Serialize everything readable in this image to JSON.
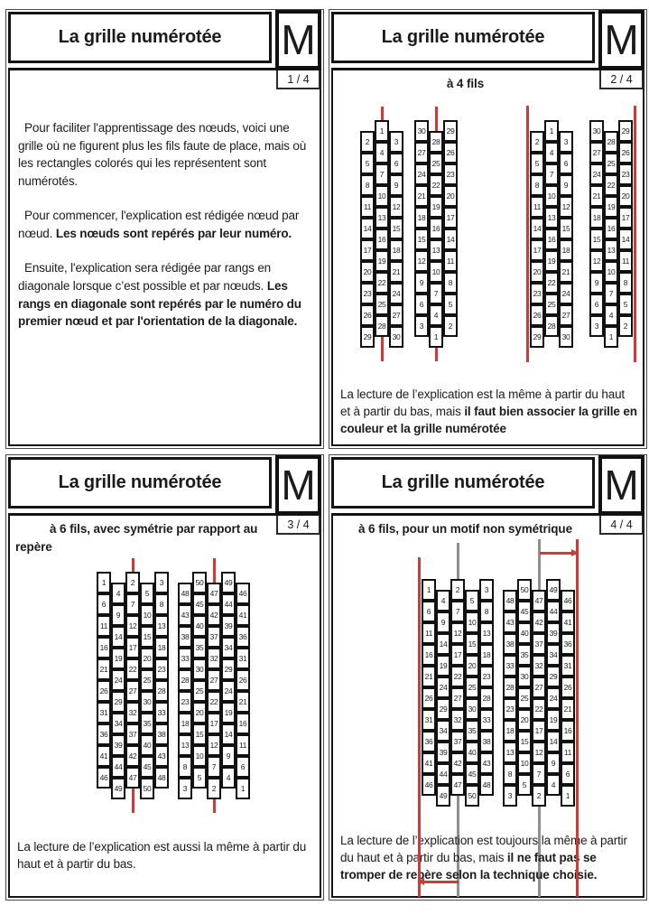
{
  "colors": {
    "red": "#cc3a3a",
    "gray": "#8f8f8f",
    "border": "#141414"
  },
  "slides": [
    {
      "title": "La grille numérotée",
      "logo": "M",
      "page": "1 / 4",
      "paragraphs": [
        {
          "normal": "Pour faciliter l'apprentissage des nœuds, voici une grille où ne figurent plus les fils faute de place, mais où les rectangles colorés qui les représentent sont numérotés.",
          "bold": ""
        },
        {
          "normal": "Pour commencer, l'explication est rédigée nœud par nœud. ",
          "bold": "Les nœuds sont repérés par leur numéro."
        },
        {
          "normal": "Ensuite, l'explication sera rédigée par rangs en diagonale lorsque c’est possible et par nœuds. ",
          "bold": "Les rangs en diagonale sont repérés par le numéro du premier nœud et par l'orientation de la diagonale."
        }
      ]
    },
    {
      "title": "La grille numérotée",
      "logo": "M",
      "page": "2 / 4",
      "subtitle": "à 4 fils",
      "footer": {
        "normal": "La lecture  de l’explication est la même à partir du haut et à partir du bas, mais ",
        "bold": "il faut bien associer la grille en couleur et la grille numérotée"
      }
    },
    {
      "title": "La grille numérotée",
      "logo": "M",
      "page": "3 / 4",
      "subtitle": "à 6 fils, avec symétrie par rapport au repère",
      "footer": {
        "normal": "La lecture  de l’explication est aussi la même à partir du haut et à partir du bas.",
        "bold": ""
      }
    },
    {
      "title": "La grille numérotée",
      "logo": "M",
      "page": "4 / 4",
      "subtitle": "à 6 fils, pour un motif non symétrique",
      "footer": {
        "normal": "La lecture de l’explication est toujours la même à partir du haut et à partir du bas, mais ",
        "bold": "il ne faut pas se tromper de repère selon la technique choisie."
      }
    }
  ],
  "grids": {
    "g4_up": {
      "cols": 3,
      "rows": [
        [
          1
        ],
        [
          2,
          3
        ],
        [
          4
        ],
        [
          5,
          6
        ],
        [
          7
        ],
        [
          8,
          9
        ],
        [
          10
        ],
        [
          11,
          12
        ],
        [
          13
        ],
        [
          14,
          15
        ],
        [
          16
        ],
        [
          17,
          18
        ],
        [
          19
        ],
        [
          20,
          21
        ],
        [
          22
        ],
        [
          23,
          24
        ],
        [
          25
        ],
        [
          26,
          27
        ],
        [
          28
        ],
        [
          29,
          30
        ]
      ]
    },
    "g4_down": {
      "cols": 3,
      "rows": [
        [
          30,
          29
        ],
        [
          28
        ],
        [
          27,
          26
        ],
        [
          25
        ],
        [
          24,
          23
        ],
        [
          22
        ],
        [
          21,
          20
        ],
        [
          19
        ],
        [
          18,
          17
        ],
        [
          16
        ],
        [
          15,
          14
        ],
        [
          13
        ],
        [
          12,
          11
        ],
        [
          10
        ],
        [
          9,
          8
        ],
        [
          7
        ],
        [
          6,
          5
        ],
        [
          4
        ],
        [
          3,
          2
        ],
        [
          1
        ]
      ]
    },
    "g6_up": {
      "cols": 5,
      "rows": [
        [
          1,
          2,
          3
        ],
        [
          4,
          5
        ],
        [
          6,
          7,
          8
        ],
        [
          9,
          10
        ],
        [
          11,
          12,
          13
        ],
        [
          14,
          15
        ],
        [
          16,
          17,
          18
        ],
        [
          19,
          20
        ],
        [
          21,
          22,
          23
        ],
        [
          24,
          25
        ],
        [
          26,
          27,
          28
        ],
        [
          29,
          30
        ],
        [
          31,
          32,
          33
        ],
        [
          34,
          35
        ],
        [
          36,
          37,
          38
        ],
        [
          39,
          40
        ],
        [
          41,
          42,
          43
        ],
        [
          44,
          45
        ],
        [
          46,
          47,
          48
        ],
        [
          49,
          50
        ]
      ]
    },
    "g6_down": {
      "cols": 5,
      "rows": [
        [
          50,
          49
        ],
        [
          48,
          47,
          46
        ],
        [
          45,
          44
        ],
        [
          43,
          42,
          41
        ],
        [
          40,
          39
        ],
        [
          38,
          37,
          36
        ],
        [
          35,
          34
        ],
        [
          33,
          32,
          31
        ],
        [
          30,
          29
        ],
        [
          28,
          27,
          26
        ],
        [
          25,
          24
        ],
        [
          23,
          22,
          21
        ],
        [
          20,
          19
        ],
        [
          18,
          17,
          16
        ],
        [
          15,
          14
        ],
        [
          13,
          12,
          11
        ],
        [
          10,
          9
        ],
        [
          8,
          7,
          6
        ],
        [
          5,
          4
        ],
        [
          3,
          2,
          1
        ]
      ]
    }
  }
}
